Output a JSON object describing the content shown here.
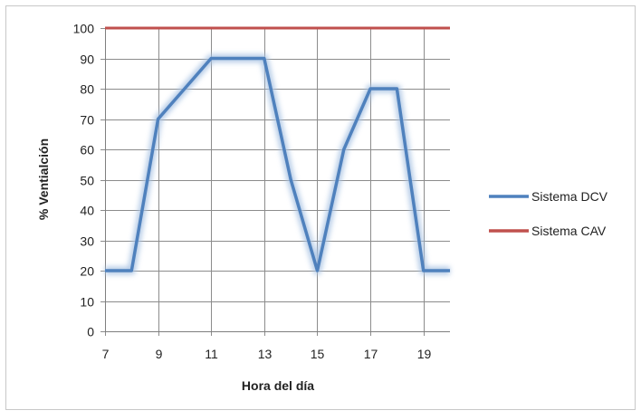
{
  "chart_data": {
    "type": "line",
    "title": "",
    "xlabel": "Hora del día",
    "ylabel": "% Ventialción",
    "xlim": [
      7,
      20
    ],
    "ylim": [
      0,
      100
    ],
    "xticks": [
      7,
      9,
      11,
      13,
      15,
      17,
      19
    ],
    "yticks": [
      0,
      10,
      20,
      30,
      40,
      50,
      60,
      70,
      80,
      90,
      100
    ],
    "grid": true,
    "legend_position": "right",
    "series": [
      {
        "name": "Sistema DCV",
        "color": "#4F81BD",
        "x": [
          7,
          8,
          9,
          10,
          11,
          12,
          13,
          14,
          15,
          16,
          17,
          18,
          19,
          20
        ],
        "y": [
          20,
          20,
          70,
          80,
          90,
          90,
          90,
          50,
          20,
          60,
          80,
          80,
          20,
          20
        ]
      },
      {
        "name": "Sistema CAV",
        "color": "#C0504D",
        "x": [
          7,
          20
        ],
        "y": [
          100,
          100
        ]
      }
    ]
  }
}
